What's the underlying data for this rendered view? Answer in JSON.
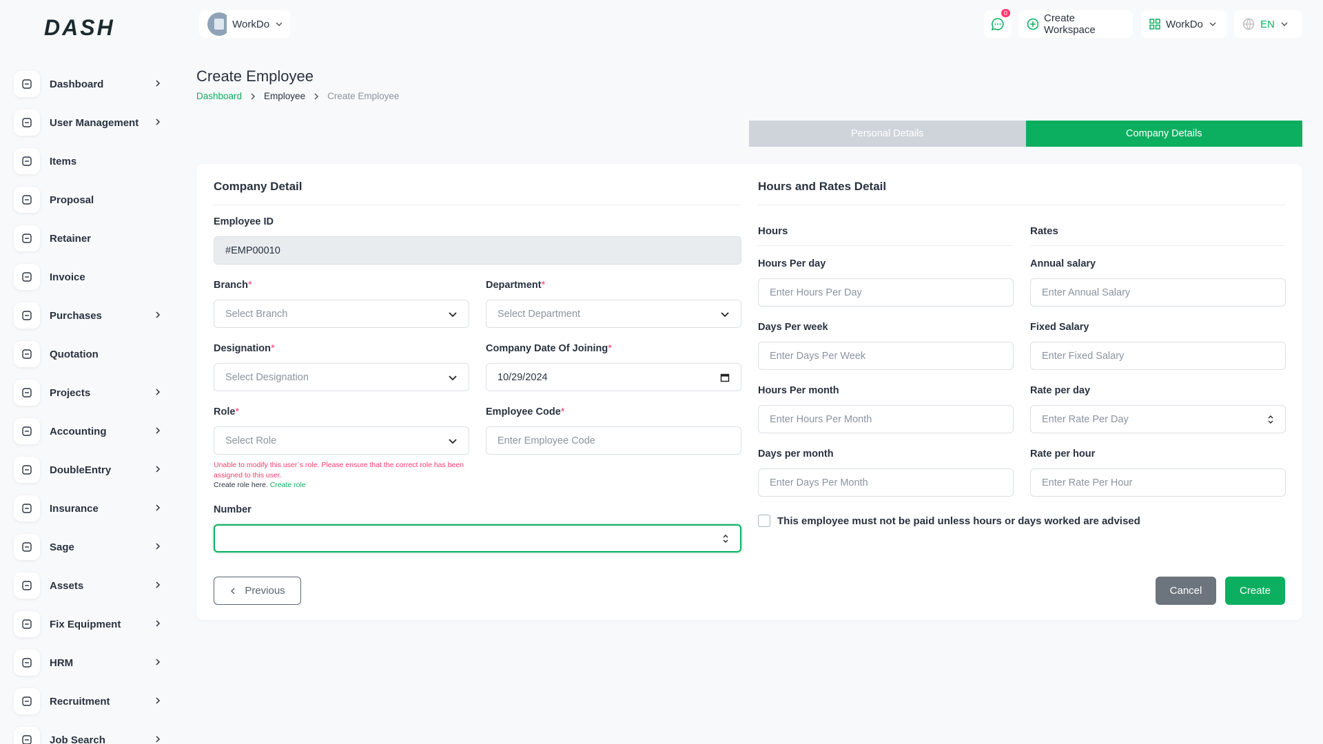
{
  "logo": "DASH",
  "header": {
    "workspace": "WorkDo",
    "notifications": "0",
    "create_workspace": "Create Workspace",
    "user": "WorkDo",
    "language": "EN"
  },
  "sidebar": {
    "items": [
      {
        "label": "Dashboard",
        "has_children": true
      },
      {
        "label": "User Management",
        "has_children": true
      },
      {
        "label": "Items",
        "has_children": false
      },
      {
        "label": "Proposal",
        "has_children": false
      },
      {
        "label": "Retainer",
        "has_children": false
      },
      {
        "label": "Invoice",
        "has_children": false
      },
      {
        "label": "Purchases",
        "has_children": true
      },
      {
        "label": "Quotation",
        "has_children": false
      },
      {
        "label": "Projects",
        "has_children": true
      },
      {
        "label": "Accounting",
        "has_children": true
      },
      {
        "label": "DoubleEntry",
        "has_children": true
      },
      {
        "label": "Insurance",
        "has_children": true
      },
      {
        "label": "Sage",
        "has_children": true
      },
      {
        "label": "Assets",
        "has_children": true
      },
      {
        "label": "Fix Equipment",
        "has_children": true
      },
      {
        "label": "HRM",
        "has_children": true
      },
      {
        "label": "Recruitment",
        "has_children": true
      },
      {
        "label": "Job Search",
        "has_children": true
      }
    ]
  },
  "page": {
    "title": "Create Employee",
    "breadcrumb": [
      "Dashboard",
      "Employee",
      "Create Employee"
    ]
  },
  "tabs": {
    "items": [
      "Personal Details",
      "Company Details"
    ],
    "active": 1
  },
  "required_mark": "*",
  "company_detail": {
    "title": "Company Detail",
    "fields": [
      {
        "label": "Employee ID",
        "value": "#EMP00010",
        "kind": "readonly",
        "wide": true
      },
      {
        "label": "Branch",
        "required": true,
        "placeholder": "Select Branch",
        "kind": "select"
      },
      {
        "label": "Department",
        "required": true,
        "placeholder": "Select Department",
        "kind": "select"
      },
      {
        "label": "Designation",
        "required": true,
        "placeholder": "Select Designation",
        "kind": "select"
      },
      {
        "label": "Company Date Of Joining",
        "required": true,
        "value": "10/29/2024",
        "kind": "date"
      },
      {
        "label": "Role",
        "required": true,
        "placeholder": "Select Role",
        "kind": "select",
        "note": "Unable to modify this user`s role. Please ensure that the correct role has been assigned to this user.",
        "note_prefix": "Create role here.",
        "note_link": "Create role"
      },
      {
        "label": "Employee Code",
        "required": true,
        "placeholder": "Enter Employee Code",
        "kind": "text"
      },
      {
        "label": "Number",
        "kind": "number",
        "wide": true,
        "focused": true
      }
    ]
  },
  "hours_rates": {
    "title": "Hours and Rates Detail",
    "columns": [
      {
        "title": "Hours",
        "fields": [
          {
            "label": "Hours Per day",
            "placeholder": "Enter Hours Per Day",
            "kind": "text"
          },
          {
            "label": "Days Per week",
            "placeholder": "Enter Days Per Week",
            "kind": "text"
          },
          {
            "label": "Hours Per month",
            "placeholder": "Enter Hours Per Month",
            "kind": "text"
          },
          {
            "label": "Days per month",
            "placeholder": "Enter Days Per Month",
            "kind": "text"
          }
        ]
      },
      {
        "title": "Rates",
        "fields": [
          {
            "label": "Annual salary",
            "placeholder": "Enter Annual Salary",
            "kind": "text"
          },
          {
            "label": "Fixed Salary",
            "placeholder": "Enter Fixed Salary",
            "kind": "text"
          },
          {
            "label": "Rate per day",
            "placeholder": "Enter Rate Per Day",
            "kind": "number"
          },
          {
            "label": "Rate per hour",
            "placeholder": "Enter Rate Per Hour",
            "kind": "text"
          }
        ]
      }
    ],
    "checkbox": "This employee must not be paid unless hours or days worked are advised"
  },
  "actions": {
    "previous": "Previous",
    "cancel": "Cancel",
    "create": "Create"
  }
}
